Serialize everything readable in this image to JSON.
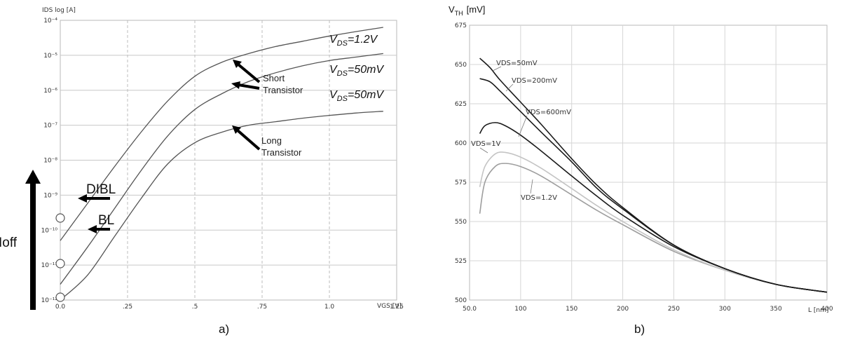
{
  "chart_data": [
    {
      "type": "line",
      "panel_label": "a)",
      "ylabel": "IDS log [A]",
      "xlabel": "VGS [V]",
      "xlim": [
        0,
        1.25
      ],
      "x_ticks": [
        0.0,
        0.25,
        0.5,
        0.75,
        1.0,
        1.25
      ],
      "x_tick_labels": [
        "0.0",
        ".25",
        ".5",
        ".75",
        "1.0",
        "1.25"
      ],
      "y_scale": "log",
      "ylim_exp": [
        -12,
        -4
      ],
      "y_tick_exps": [
        -12,
        -11,
        -10,
        -9,
        -8,
        -7,
        -6,
        -5,
        -4
      ],
      "y_tick_labels": [
        "10⁻¹²",
        "10⁻¹¹",
        "10⁻¹⁰",
        "10⁻⁹",
        "10⁻⁸",
        "10⁻⁷",
        "10⁻⁶",
        "10⁻⁵",
        "10⁻⁴"
      ],
      "series": [
        {
          "name": "VDS=1.2V (Short Transistor)",
          "label_main": "V",
          "label_sub": "DS",
          "label_rest": "=1.2V",
          "x": [
            0.0,
            0.1,
            0.2,
            0.3,
            0.4,
            0.5,
            0.6,
            0.7,
            0.8,
            0.9,
            1.0,
            1.1,
            1.2
          ],
          "y_exp": [
            -10.3,
            -9.25,
            -8.2,
            -7.2,
            -6.3,
            -5.6,
            -5.2,
            -4.95,
            -4.75,
            -4.6,
            -4.45,
            -4.32,
            -4.2
          ]
        },
        {
          "name": "VDS=50mV (Short Transistor)",
          "label_main": "V",
          "label_sub": "DS",
          "label_rest": "=50mV",
          "x": [
            0.0,
            0.1,
            0.2,
            0.3,
            0.4,
            0.5,
            0.6,
            0.7,
            0.8,
            0.9,
            1.0,
            1.1,
            1.2
          ],
          "y_exp": [
            -11.55,
            -10.5,
            -9.4,
            -8.3,
            -7.3,
            -6.55,
            -6.1,
            -5.75,
            -5.5,
            -5.3,
            -5.15,
            -5.05,
            -4.95
          ]
        },
        {
          "name": "VDS=50mV (Long Transistor)",
          "label_main": "V",
          "label_sub": "DS",
          "label_rest": "=50mV",
          "x": [
            0.0,
            0.1,
            0.2,
            0.3,
            0.4,
            0.5,
            0.6,
            0.7,
            0.8,
            0.9,
            1.0,
            1.1,
            1.2
          ],
          "y_exp": [
            -12.0,
            -11.3,
            -10.2,
            -9.1,
            -8.1,
            -7.5,
            -7.2,
            -7.0,
            -6.9,
            -6.8,
            -6.72,
            -6.65,
            -6.6
          ]
        }
      ],
      "annotations": {
        "short_transistor": [
          "Short",
          "Transistor"
        ],
        "long_transistor": [
          "Long",
          "Transistor"
        ],
        "dibl": "DIBL",
        "bl": "BL",
        "ioff": "Ioff"
      }
    },
    {
      "type": "line",
      "panel_label": "b)",
      "ylabel_main": "V",
      "ylabel_sub": "TH",
      "ylabel_unit": "[mV]",
      "xlabel": "L [nm]",
      "xlim": [
        50,
        400
      ],
      "ylim": [
        500,
        675
      ],
      "x_ticks": [
        50,
        100,
        150,
        200,
        250,
        300,
        350,
        400
      ],
      "x_tick_labels": [
        "50.0",
        "100",
        "150",
        "200",
        "250",
        "300",
        "350",
        "400"
      ],
      "y_ticks": [
        500,
        525,
        550,
        575,
        600,
        625,
        650,
        675
      ],
      "y_tick_labels": [
        "500",
        "525",
        "550",
        "575",
        "600",
        "625",
        "650",
        "675"
      ],
      "series": [
        {
          "name": "VDS=50mV",
          "color": "#1a1a1a",
          "x": [
            60,
            70,
            80,
            100,
            120,
            150,
            175,
            200,
            250,
            300,
            350,
            400
          ],
          "y": [
            654,
            648,
            640,
            626,
            612,
            590,
            573,
            559,
            535,
            520,
            510,
            505
          ]
        },
        {
          "name": "VDS=200mV",
          "color": "#1a1a1a",
          "x": [
            60,
            70,
            80,
            100,
            120,
            150,
            175,
            200,
            250,
            300,
            350,
            400
          ],
          "y": [
            641,
            639,
            633,
            620,
            607,
            588,
            571,
            558,
            535,
            520,
            510,
            505
          ]
        },
        {
          "name": "VDS=600mV",
          "color": "#1a1a1a",
          "x": [
            60,
            65,
            75,
            85,
            100,
            120,
            150,
            175,
            200,
            250,
            300,
            350,
            400
          ],
          "y": [
            606,
            611,
            613,
            611,
            605,
            595,
            579,
            566,
            554,
            534,
            520,
            510,
            505
          ]
        },
        {
          "name": "VDS=1V",
          "color": "#c4c4c4",
          "x": [
            60,
            65,
            75,
            85,
            100,
            120,
            150,
            175,
            200,
            250,
            300,
            350,
            400
          ],
          "y": [
            572,
            585,
            593,
            594,
            591,
            584,
            571,
            560,
            550,
            532,
            519,
            510,
            505
          ]
        },
        {
          "name": "VDS=1.2V",
          "color": "#9e9e9e",
          "x": [
            60,
            65,
            75,
            85,
            100,
            120,
            150,
            175,
            200,
            250,
            300,
            350,
            400
          ],
          "y": [
            555,
            575,
            585,
            587,
            585,
            579,
            567,
            557,
            548,
            531,
            519,
            510,
            505
          ]
        }
      ]
    }
  ]
}
